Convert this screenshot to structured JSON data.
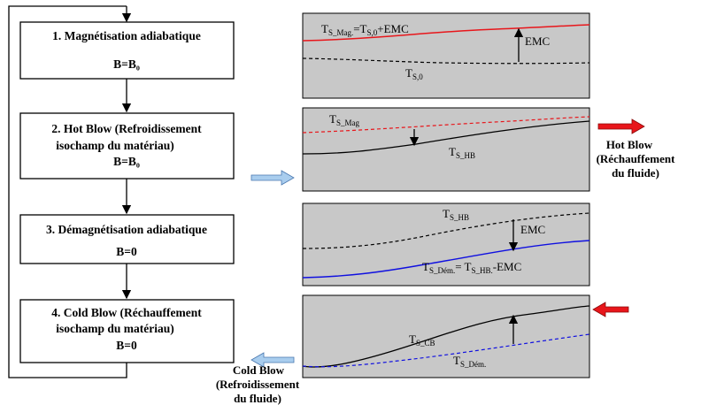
{
  "steps": [
    {
      "title_line1": "1. Magnétisation adiabatique",
      "title_line2": "",
      "field": "B=B₀"
    },
    {
      "title_line1": "2. Hot Blow (Refroidissement",
      "title_line2": "isochamp du matériau)",
      "field": "B=B₀"
    },
    {
      "title_line1": "3. Démagnétisation adiabatique",
      "title_line2": "",
      "field": "B=0"
    },
    {
      "title_line1": "4. Cold Blow (Réchauffement",
      "title_line2": "isochamp du matériau)",
      "field": "B=0"
    }
  ],
  "panels": [
    {
      "label_top_main": "T",
      "label_top_sub": "S_Mag.",
      "label_top_rest": "=T",
      "label_top_sub2": "S,0",
      "label_top_rest2": "+EMC",
      "label_bottom_main": "T",
      "label_bottom_sub": "S,0",
      "emc_label": "EMC",
      "colors": {
        "top": "#e8161b",
        "bottom": "#000000"
      }
    },
    {
      "label_top_main": "T",
      "label_top_sub": "S_Mag",
      "label_bottom_main": "T",
      "label_bottom_sub": "S_HB",
      "colors": {
        "top": "#e8161b",
        "bottom": "#000000"
      }
    },
    {
      "label_top_main": "T",
      "label_top_sub": "S_HB",
      "label_bottom_main": "T",
      "label_bottom_sub": "S_Dém.",
      "label_bottom_rest": "= T",
      "label_bottom_sub2": "S_HB.",
      "label_bottom_rest2": "-EMC",
      "emc_label": "EMC",
      "colors": {
        "top": "#000000",
        "bottom": "#1010e0"
      }
    },
    {
      "label_top_main": "T",
      "label_top_sub": "S_CB",
      "label_bottom_main": "T",
      "label_bottom_sub": "S_Dém.",
      "colors": {
        "top": "#000000",
        "bottom": "#1010e0"
      }
    }
  ],
  "side_labels": {
    "hot_blow": [
      "Hot Blow",
      "(Réchauffement",
      "du fluide)"
    ],
    "cold_blow": [
      "Cold Blow",
      "(Refroidissement",
      "du fluide)"
    ]
  },
  "colors": {
    "panel_bg": "#c8c8c8",
    "red_arrow": "#e8161b",
    "blue_arrow": "#a9cdee",
    "blue_arrow_stroke": "#4a78b0"
  }
}
